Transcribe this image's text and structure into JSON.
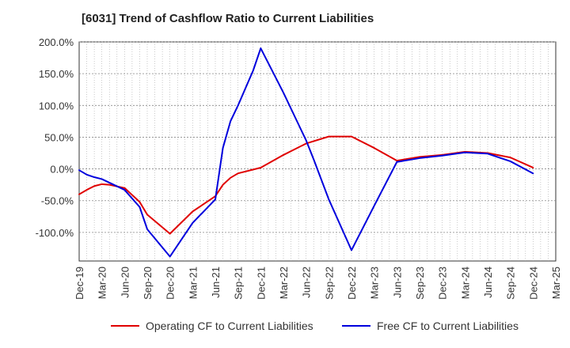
{
  "chart_data": {
    "type": "line",
    "title": "[6031]  Trend of Cashflow Ratio to Current Liabilities",
    "xlabel": "",
    "ylabel": "",
    "x_ticks": [
      "Dec-19",
      "Mar-20",
      "Jun-20",
      "Sep-20",
      "Dec-20",
      "Mar-21",
      "Jun-21",
      "Sep-21",
      "Dec-21",
      "Mar-22",
      "Jun-22",
      "Sep-22",
      "Dec-22",
      "Mar-23",
      "Jun-23",
      "Sep-23",
      "Dec-23",
      "Mar-24",
      "Jun-24",
      "Sep-24",
      "Dec-24",
      "Mar-25"
    ],
    "y_ticks": [
      200,
      150,
      100,
      50,
      0,
      -50,
      -100
    ],
    "y_tick_format": "%",
    "ylim": [
      -145,
      200
    ],
    "grid": true,
    "legend_position": "bottom",
    "series": [
      {
        "name": "Operating CF to Current Liabilities",
        "color": "#e00000",
        "points": [
          [
            "Dec-19",
            -40
          ],
          [
            "Jan-20",
            -33
          ],
          [
            "Feb-20",
            -27
          ],
          [
            "Mar-20",
            -24
          ],
          [
            "Apr-20",
            -25
          ],
          [
            "Jun-20",
            -30
          ],
          [
            "Aug-20",
            -52
          ],
          [
            "Sep-20",
            -72
          ],
          [
            "Dec-20",
            -102
          ],
          [
            "Mar-21",
            -67
          ],
          [
            "Jun-21",
            -43
          ],
          [
            "Jul-21",
            -25
          ],
          [
            "Aug-21",
            -14
          ],
          [
            "Sep-21",
            -7
          ],
          [
            "Dec-21",
            2
          ],
          [
            "Mar-22",
            22
          ],
          [
            "Jun-22",
            40
          ],
          [
            "Sep-22",
            51
          ],
          [
            "Dec-22",
            51
          ],
          [
            "Mar-23",
            33
          ],
          [
            "Jun-23",
            13
          ],
          [
            "Sep-23",
            19
          ],
          [
            "Dec-23",
            22
          ],
          [
            "Mar-24",
            27
          ],
          [
            "Jun-24",
            25
          ],
          [
            "Sep-24",
            18
          ],
          [
            "Dec-24",
            2
          ]
        ]
      },
      {
        "name": "Free CF to Current Liabilities",
        "color": "#0000dd",
        "points": [
          [
            "Dec-19",
            -2
          ],
          [
            "Jan-20",
            -9
          ],
          [
            "Feb-20",
            -13
          ],
          [
            "Mar-20",
            -16
          ],
          [
            "Jun-20",
            -33
          ],
          [
            "Aug-20",
            -60
          ],
          [
            "Sep-20",
            -95
          ],
          [
            "Dec-20",
            -138
          ],
          [
            "Mar-21",
            -85
          ],
          [
            "Jun-21",
            -48
          ],
          [
            "Jul-21",
            33
          ],
          [
            "Aug-21",
            75
          ],
          [
            "Sep-21",
            100
          ],
          [
            "Nov-21",
            155
          ],
          [
            "Dec-21",
            190
          ],
          [
            "Mar-22",
            120
          ],
          [
            "May-22",
            70
          ],
          [
            "Jun-22",
            45
          ],
          [
            "Jul-22",
            15
          ],
          [
            "Sep-22",
            -48
          ],
          [
            "Dec-22",
            -128
          ],
          [
            "Mar-23",
            -58
          ],
          [
            "Jun-23",
            11
          ],
          [
            "Sep-23",
            17
          ],
          [
            "Dec-23",
            21
          ],
          [
            "Mar-24",
            26
          ],
          [
            "Jun-24",
            24
          ],
          [
            "Sep-24",
            12
          ],
          [
            "Dec-24",
            -7
          ]
        ]
      }
    ]
  }
}
